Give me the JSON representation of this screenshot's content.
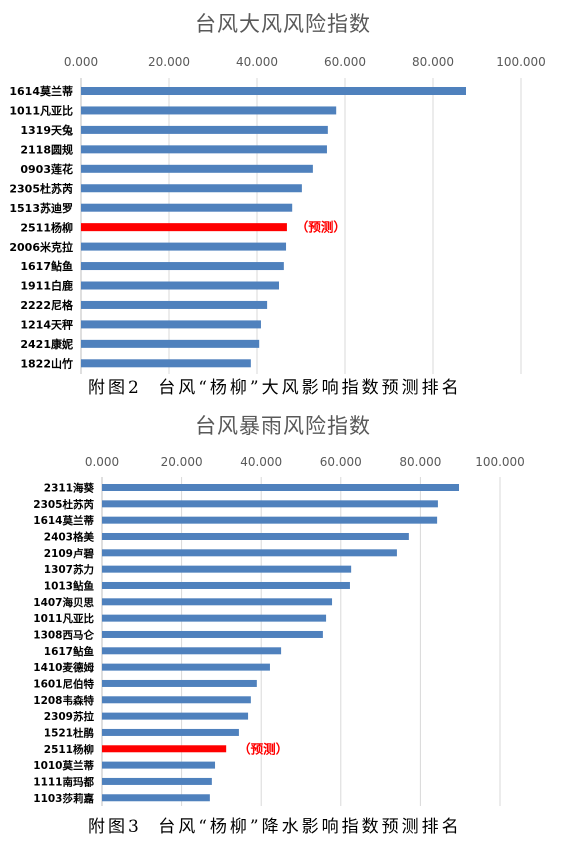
{
  "colors": {
    "bar": "#4F81BD",
    "highlight": "#FF0000",
    "grid": "#D9D9D9",
    "axis": "#BFBFBF",
    "title": "#595959",
    "tick": "#595959"
  },
  "captions": [
    "附图2 台风“杨柳”大风影响指数预测排名",
    "附图3 台风“杨柳”降水影响指数预测排名"
  ],
  "chart_data": [
    {
      "type": "bar",
      "orientation": "horizontal",
      "x_axis": "top",
      "grid": true,
      "title": "台风大风风险指数",
      "xlim": [
        0,
        100
      ],
      "x_ticks": [
        "0.000",
        "20.000",
        "40.000",
        "60.000",
        "80.000",
        "100.000"
      ],
      "categories": [
        "1614莫兰蒂",
        "1011凡亚比",
        "1319天兔",
        "2118圆规",
        "0903莲花",
        "2305杜苏芮",
        "1513苏迪罗",
        "2511杨柳",
        "2006米克拉",
        "1617鲇鱼",
        "1911白鹿",
        "2222尼格",
        "1214天秤",
        "2421康妮",
        "1822山竹"
      ],
      "values": [
        87.5,
        58.0,
        56.1,
        55.9,
        52.7,
        50.2,
        48.0,
        46.8,
        46.6,
        46.1,
        45.0,
        42.3,
        40.9,
        40.5,
        38.6
      ],
      "highlight": {
        "index": 7,
        "note": "（预测）"
      }
    },
    {
      "type": "bar",
      "orientation": "horizontal",
      "x_axis": "top",
      "grid": true,
      "title": "台风暴雨风险指数",
      "xlim": [
        0,
        100
      ],
      "x_ticks": [
        "0.000",
        "20.000",
        "40.000",
        "60.000",
        "80.000",
        "100.000"
      ],
      "categories": [
        "2311海葵",
        "2305杜苏芮",
        "1614莫兰蒂",
        "2403格美",
        "2109卢碧",
        "1307苏力",
        "1013鲇鱼",
        "1407海贝思",
        "1011凡亚比",
        "1308西马仑",
        "1617鲇鱼",
        "1410麦德姆",
        "1601尼伯特",
        "1208韦森特",
        "2309苏拉",
        "1521杜鹃",
        "2511杨柳",
        "1010莫兰蒂",
        "1111南玛都",
        "1103莎莉嘉"
      ],
      "values": [
        89.7,
        84.4,
        84.2,
        77.1,
        74.1,
        62.6,
        62.3,
        57.8,
        56.3,
        55.5,
        45.0,
        42.2,
        38.9,
        37.4,
        36.7,
        34.4,
        31.2,
        28.4,
        27.6,
        27.1
      ],
      "highlight": {
        "index": 16,
        "note": "（预测）"
      }
    }
  ]
}
